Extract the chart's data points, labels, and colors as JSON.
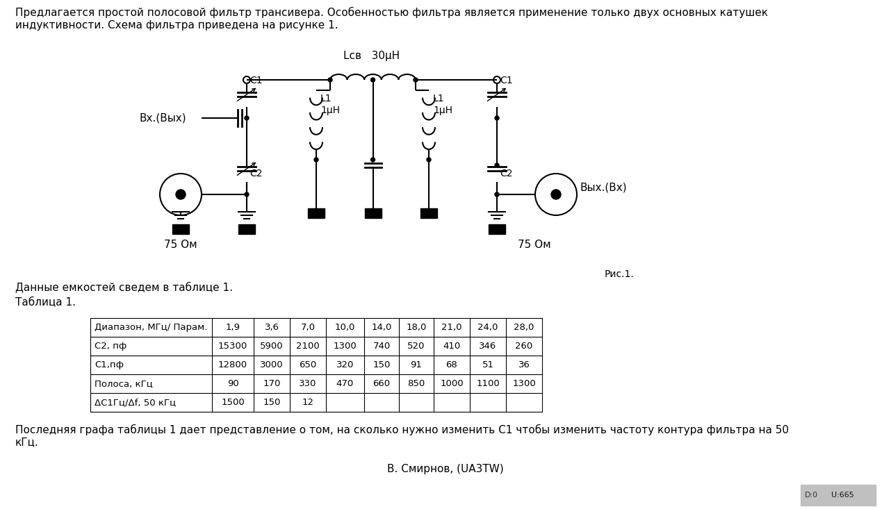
{
  "title_text": "Предлагается простой полосовой фильтр трансивера. Особенностью фильтра является применение только двух основных катушек\nиндуктивности. Схема фильтра приведена на рисунке 1.",
  "caption_text": "Данные емкостей сведем в таблице 1.",
  "table_title": "Таблица 1.",
  "fig1_label": "Рис.1.",
  "footer_text": "Последняя графа таблицы 1 дает представление о том, на сколько нужно изменить С1 чтобы изменить частоту контура фильтра на 50\nкГц.",
  "author_text": "В. Смирнов, (UA3TW)",
  "bg_color": "#ffffff",
  "text_color": "#000000",
  "table_headers": [
    "Диапазон, МГц/ Парам.",
    "1,9",
    "3,6",
    "7,0",
    "10,0",
    "14,0",
    "18,0",
    "21,0",
    "24,0",
    "28,0"
  ],
  "table_rows": [
    [
      "С2, пф",
      "15300",
      "5900",
      "2100",
      "1300",
      "740",
      "520",
      "410",
      "346",
      "260"
    ],
    [
      "С1,пф",
      "12800",
      "3000",
      "650",
      "320",
      "150",
      "91",
      "68",
      "51",
      "36"
    ],
    [
      "Полоса, кГц",
      "90",
      "170",
      "330",
      "470",
      "660",
      "850",
      "1000",
      "1100",
      "1300"
    ],
    [
      "ΔC1Гц/Δf, 50 кГц",
      "1500",
      "150",
      "12",
      "",
      "",
      "",
      "",
      "",
      ""
    ]
  ],
  "lcb_label": "Lсв   30μH",
  "vx_label": "Вх.(Вых)",
  "vyx_label": "Вых.(Вх)",
  "r75_label": "75 Ом",
  "circuit_color": "#000000",
  "lw_wire": 1.5,
  "lw_cap": 2.0,
  "lw_circle": 1.5
}
